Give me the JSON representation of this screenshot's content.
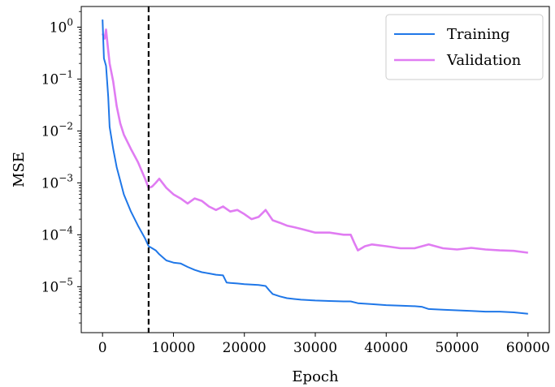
{
  "chart_data": {
    "type": "line",
    "title": "",
    "xlabel": "Epoch",
    "ylabel": "MSE",
    "y_scale": "log",
    "xlim": [
      -3000,
      63000
    ],
    "ylim": [
      1.3e-06,
      2.5
    ],
    "x_ticks": [
      0,
      10000,
      20000,
      30000,
      40000,
      50000,
      60000
    ],
    "x_tick_labels": [
      "0",
      "10000",
      "20000",
      "30000",
      "40000",
      "50000",
      "60000"
    ],
    "y_ticks": [
      {
        "value": 1e-05,
        "base": "10",
        "exp": "−5"
      },
      {
        "value": 0.0001,
        "base": "10",
        "exp": "−4"
      },
      {
        "value": 0.001,
        "base": "10",
        "exp": "−3"
      },
      {
        "value": 0.01,
        "base": "10",
        "exp": "−2"
      },
      {
        "value": 0.1,
        "base": "10",
        "exp": "−1"
      },
      {
        "value": 1,
        "base": "10",
        "exp": "0"
      }
    ],
    "grid": false,
    "legend_position": "top-right",
    "vertical_line": {
      "x": 6500,
      "style": "dashed",
      "color": "#000000"
    },
    "series": [
      {
        "name": "Training",
        "color": "#1f77e8",
        "x": [
          0,
          200,
          500,
          800,
          1000,
          1500,
          2000,
          2500,
          3000,
          4000,
          5000,
          6000,
          6500,
          7000,
          7500,
          8000,
          9000,
          10000,
          11000,
          12000,
          13000,
          14000,
          15000,
          16000,
          17000,
          17500,
          18000,
          19000,
          20000,
          21000,
          22000,
          23000,
          23500,
          24000,
          25000,
          26000,
          27000,
          28000,
          30000,
          32000,
          34000,
          35000,
          36000,
          38000,
          40000,
          42000,
          44000,
          45000,
          46000,
          48000,
          50000,
          52000,
          54000,
          56000,
          58000,
          60000
        ],
        "y": [
          1.4,
          0.25,
          0.18,
          0.045,
          0.012,
          0.0045,
          0.002,
          0.0011,
          0.0006,
          0.00028,
          0.00015,
          8.5e-05,
          6e-05,
          5.5e-05,
          5e-05,
          4.2e-05,
          3.2e-05,
          2.9e-05,
          2.8e-05,
          2.4e-05,
          2.1e-05,
          1.9e-05,
          1.8e-05,
          1.7e-05,
          1.65e-05,
          1.2e-05,
          1.18e-05,
          1.15e-05,
          1.12e-05,
          1.1e-05,
          1.08e-05,
          1.03e-05,
          8.5e-06,
          7.2e-06,
          6.5e-06,
          6e-06,
          5.8e-06,
          5.6e-06,
          5.4e-06,
          5.3e-06,
          5.2e-06,
          5.2e-06,
          4.8e-06,
          4.6e-06,
          4.4e-06,
          4.3e-06,
          4.2e-06,
          4.1e-06,
          3.7e-06,
          3.6e-06,
          3.5e-06,
          3.4e-06,
          3.3e-06,
          3.3e-06,
          3.2e-06,
          3e-06
        ]
      },
      {
        "name": "Validation",
        "color": "#e07cf2",
        "x": [
          0,
          300,
          500,
          800,
          1000,
          1500,
          2000,
          2500,
          3000,
          4000,
          5000,
          6000,
          6500,
          7000,
          7500,
          8000,
          9000,
          10000,
          11000,
          12000,
          13000,
          14000,
          15000,
          16000,
          17000,
          18000,
          19000,
          20000,
          21000,
          22000,
          23000,
          24000,
          25000,
          26000,
          27000,
          28000,
          30000,
          32000,
          34000,
          35000,
          35500,
          36000,
          37000,
          38000,
          40000,
          42000,
          44000,
          46000,
          48000,
          50000,
          52000,
          54000,
          56000,
          58000,
          60000
        ],
        "y": [
          0.75,
          0.6,
          0.9,
          0.35,
          0.2,
          0.09,
          0.03,
          0.014,
          0.0085,
          0.0045,
          0.0025,
          0.0012,
          0.0008,
          0.00085,
          0.001,
          0.0012,
          0.0008,
          0.0006,
          0.0005,
          0.0004,
          0.0005,
          0.00045,
          0.00035,
          0.0003,
          0.00035,
          0.00028,
          0.0003,
          0.00025,
          0.0002,
          0.00022,
          0.0003,
          0.00019,
          0.00017,
          0.00015,
          0.00014,
          0.00013,
          0.00011,
          0.00011,
          0.0001,
          0.0001,
          7e-05,
          5e-05,
          6e-05,
          6.5e-05,
          6e-05,
          5.5e-05,
          5.5e-05,
          6.5e-05,
          5.5e-05,
          5.2e-05,
          5.6e-05,
          5.2e-05,
          5e-05,
          4.9e-05,
          4.5e-05
        ]
      }
    ]
  }
}
